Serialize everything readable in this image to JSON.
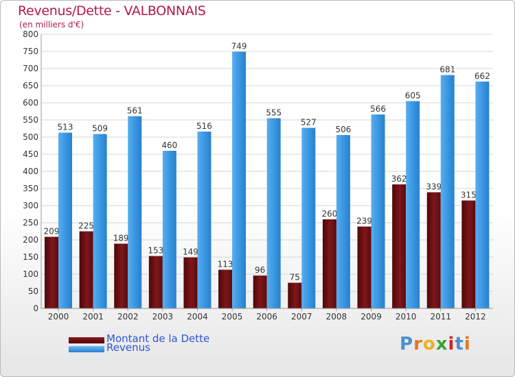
{
  "title": "Revenus/Dette - VALBONNAIS",
  "subtitle": "(en milliers d'€)",
  "logo_letters": [
    "P",
    "r",
    "o",
    "x",
    "i",
    "t",
    "i"
  ],
  "colors": {
    "dette": "#6b0f12",
    "revenus": "#2f8fdc",
    "title": "#b0194a",
    "legend_text": "#2f55d4",
    "logo": [
      "#4a8fd0",
      "#e07a1f",
      "#f0b020",
      "#3aa33a",
      "#d0252a",
      "#4a8fd0",
      "#e07a1f"
    ]
  },
  "chart_data": {
    "type": "bar",
    "title": "Revenus/Dette - VALBONNAIS",
    "ylabel": "(en milliers d'€)",
    "xlabel": "",
    "ylim": [
      0,
      800
    ],
    "ytick_step": 50,
    "grid": true,
    "legend_position": "bottom-left",
    "categories": [
      "2000",
      "2001",
      "2002",
      "2003",
      "2004",
      "2005",
      "2006",
      "2007",
      "2008",
      "2009",
      "2010",
      "2011",
      "2012"
    ],
    "series": [
      {
        "name": "Montant de la Dette",
        "values": [
          209,
          225,
          189,
          153,
          149,
          113,
          96,
          75,
          260,
          239,
          362,
          339,
          315
        ]
      },
      {
        "name": "Revenus",
        "values": [
          513,
          509,
          561,
          460,
          516,
          749,
          555,
          527,
          506,
          566,
          605,
          681,
          662
        ]
      }
    ]
  }
}
